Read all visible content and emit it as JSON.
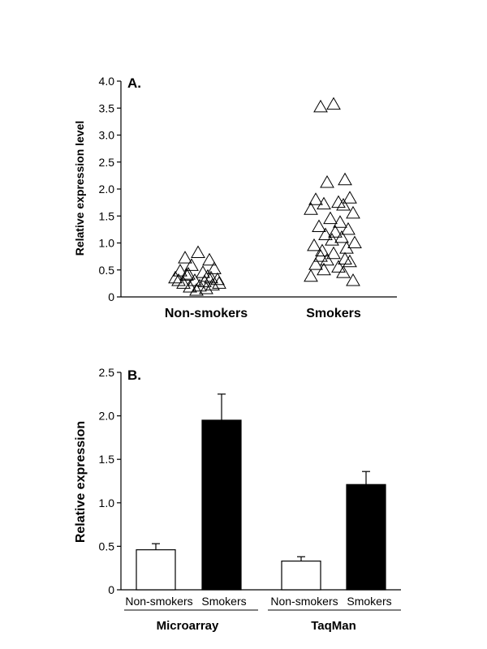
{
  "chart_data": [
    {
      "panel_label": "A.",
      "type": "scatter",
      "ylabel": "Relative expression level",
      "ylim": [
        0,
        4.0
      ],
      "yticks": [
        "0",
        "0.5",
        "1.0",
        "1.5",
        "2.0",
        "2.5",
        "3.0",
        "3.5",
        "4.0"
      ],
      "categories": [
        "Non-smokers",
        "Smokers"
      ],
      "marker": "open-triangle",
      "points": [
        {
          "category": "Non-smokers",
          "values": [
            0.82,
            0.72,
            0.68,
            0.58,
            0.52,
            0.48,
            0.45,
            0.42,
            0.38,
            0.35,
            0.32,
            0.3,
            0.28,
            0.25,
            0.22,
            0.2,
            0.18,
            0.15,
            0.12,
            0.25,
            0.3,
            0.35,
            0.4
          ]
        },
        {
          "category": "Smokers",
          "values": [
            3.57,
            3.52,
            2.17,
            2.12,
            1.83,
            1.8,
            1.75,
            1.72,
            1.7,
            1.62,
            1.55,
            1.45,
            1.38,
            1.3,
            1.25,
            1.2,
            1.15,
            1.1,
            1.05,
            1.0,
            0.95,
            0.9,
            0.85,
            0.8,
            0.75,
            0.7,
            0.68,
            0.65,
            0.6,
            0.55,
            0.5,
            0.45,
            0.38,
            0.3
          ]
        }
      ]
    },
    {
      "panel_label": "B.",
      "type": "bar",
      "ylabel": "Relative expression",
      "ylim": [
        0,
        2.5
      ],
      "yticks": [
        "0",
        "0.5",
        "1.0",
        "1.5",
        "2.0",
        "2.5"
      ],
      "groups": [
        {
          "name": "Microarray",
          "bars": [
            {
              "category": "Non-smokers",
              "value": 0.46,
              "error": 0.07,
              "color": "#ffffff"
            },
            {
              "category": "Smokers",
              "value": 1.95,
              "error": 0.3,
              "color": "#000000"
            }
          ]
        },
        {
          "name": "TaqMan",
          "bars": [
            {
              "category": "Non-smokers",
              "value": 0.33,
              "error": 0.05,
              "color": "#ffffff"
            },
            {
              "category": "Smokers",
              "value": 1.21,
              "error": 0.15,
              "color": "#000000"
            }
          ]
        }
      ]
    }
  ]
}
